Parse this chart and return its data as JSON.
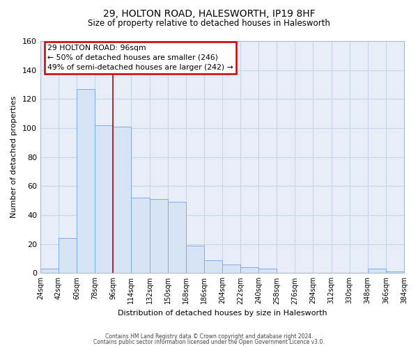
{
  "title": "29, HOLTON ROAD, HALESWORTH, IP19 8HF",
  "subtitle": "Size of property relative to detached houses in Halesworth",
  "xlabel": "Distribution of detached houses by size in Halesworth",
  "ylabel": "Number of detached properties",
  "bin_edges": [
    24,
    42,
    60,
    78,
    96,
    114,
    132,
    150,
    168,
    186,
    204,
    222,
    240,
    258,
    276,
    294,
    312,
    330,
    348,
    366,
    384
  ],
  "bar_heights": [
    3,
    24,
    127,
    102,
    101,
    52,
    51,
    49,
    19,
    9,
    6,
    4,
    3,
    0,
    0,
    0,
    0,
    0,
    3,
    1,
    1
  ],
  "bar_color": "#d6e4f5",
  "bar_edgecolor": "#7aaced",
  "marker_value": 96,
  "marker_color": "#cc0000",
  "ylim": [
    0,
    160
  ],
  "yticks": [
    0,
    20,
    40,
    60,
    80,
    100,
    120,
    140,
    160
  ],
  "grid_color": "#c8d4e8",
  "background_color": "#ffffff",
  "axes_background": "#e8eef8",
  "annotation_title": "29 HOLTON ROAD: 96sqm",
  "annotation_line1": "← 50% of detached houses are smaller (246)",
  "annotation_line2": "49% of semi-detached houses are larger (242) →",
  "annotation_box_facecolor": "#ffffff",
  "annotation_box_edgecolor": "#cc0000",
  "footer1": "Contains HM Land Registry data © Crown copyright and database right 2024.",
  "footer2": "Contains public sector information licensed under the Open Government Licence v3.0."
}
